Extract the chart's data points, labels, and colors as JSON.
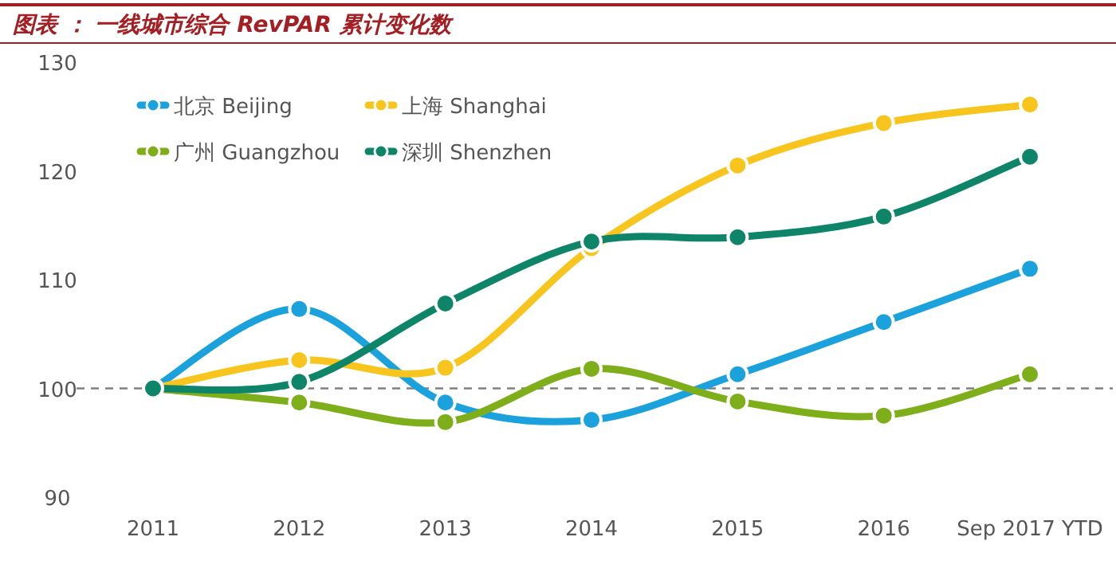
{
  "chart_data": {
    "type": "line",
    "title": "图表 ： 一线城市综合 RevPAR 累计变化数",
    "categories": [
      "2011",
      "2012",
      "2013",
      "2014",
      "2015",
      "2016",
      "Sep 2017 YTD"
    ],
    "series": [
      {
        "name": "北京 Beijing",
        "color": "#1ba1dc",
        "values": [
          100,
          107.3,
          98.7,
          97.1,
          101.3,
          106.1,
          111.0
        ]
      },
      {
        "name": "上海 Shanghai",
        "color": "#f7c51e",
        "values": [
          100,
          102.6,
          101.9,
          112.9,
          120.5,
          124.4,
          126.1
        ]
      },
      {
        "name": "广州 Guangzhou",
        "color": "#7fae1b",
        "values": [
          100,
          98.7,
          96.9,
          101.8,
          98.8,
          97.5,
          101.3
        ]
      },
      {
        "name": "深圳 Shenzhen",
        "color": "#0e8468",
        "values": [
          100,
          100.6,
          107.8,
          113.5,
          113.9,
          115.8,
          121.3
        ]
      }
    ],
    "ylim": [
      90,
      130
    ],
    "yticks": [
      90,
      100,
      110,
      120,
      130
    ],
    "ref_lines": [
      {
        "axis": "y",
        "value": 100,
        "color": "#808080",
        "line_style": "dashed"
      }
    ],
    "legend": "top left",
    "marker": "circle",
    "grid": false
  }
}
